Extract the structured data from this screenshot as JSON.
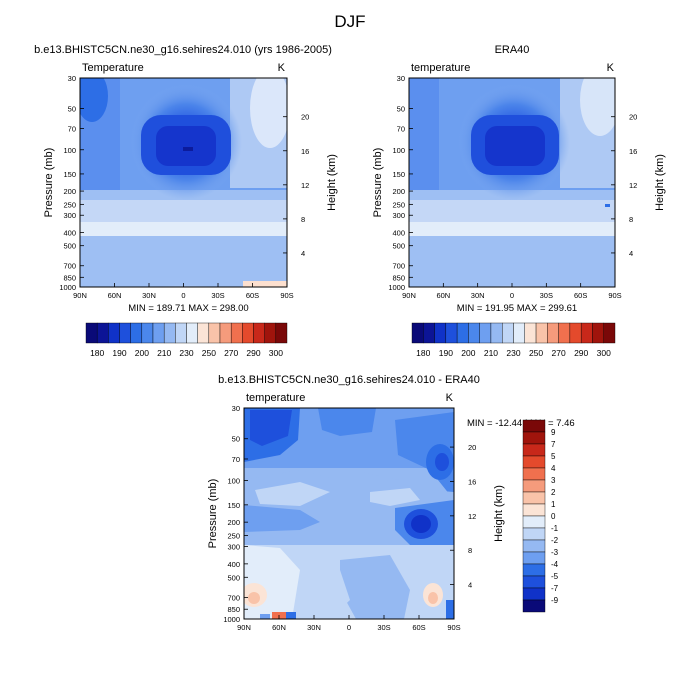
{
  "figure_title": "DJF",
  "chart_data": [
    {
      "type": "heatmap",
      "title": "b.e13.BHISTC5CN.ne30_g16.sehires24.010 (yrs 1986-2005)",
      "variable_label": "Temperature",
      "units": "K",
      "xlabel": "",
      "ylabel": "Pressure (mb)",
      "ylabel_right": "Height (km)",
      "x_ticks": [
        "90N",
        "60N",
        "30N",
        "0",
        "30S",
        "60S",
        "90S"
      ],
      "y_ticks": [
        30,
        50,
        70,
        100,
        150,
        200,
        250,
        300,
        400,
        500,
        700,
        850,
        1000
      ],
      "height_ticks": [
        4,
        8,
        12,
        16,
        20
      ],
      "y_scale": "log",
      "y_inverted": true,
      "stats": "MIN = 189.71  MAX = 298.00",
      "min": 189.71,
      "max": 298.0,
      "colorbar": {
        "orientation": "horizontal",
        "labels": [
          "180",
          "190",
          "200",
          "210",
          "230",
          "250",
          "270",
          "290",
          "300"
        ],
        "levels": [
          180,
          185,
          190,
          195,
          200,
          205,
          210,
          220,
          230,
          240,
          250,
          260,
          270,
          280,
          290,
          295,
          300
        ],
        "colors": [
          "#0a0a78",
          "#0c1496",
          "#1032c8",
          "#1e50dc",
          "#2d6ee6",
          "#4b87ec",
          "#6e9ff0",
          "#95b9f2",
          "#c0d6f6",
          "#e2edfa",
          "#fbe4d6",
          "#f9c3a9",
          "#f59b7c",
          "#f0704e",
          "#e44a2c",
          "#c8281a",
          "#a0140c",
          "#7a0808"
        ]
      }
    },
    {
      "type": "heatmap",
      "title": "ERA40",
      "variable_label": "temperature",
      "units": "K",
      "xlabel": "",
      "ylabel": "Pressure (mb)",
      "ylabel_right": "Height (km)",
      "x_ticks": [
        "90N",
        "60N",
        "30N",
        "0",
        "30S",
        "60S",
        "90S"
      ],
      "y_ticks": [
        30,
        50,
        70,
        100,
        150,
        200,
        250,
        300,
        400,
        500,
        700,
        850,
        1000
      ],
      "height_ticks": [
        4,
        8,
        12,
        16,
        20
      ],
      "y_scale": "log",
      "y_inverted": true,
      "stats": "MIN = 191.95  MAX = 299.61",
      "min": 191.95,
      "max": 299.61,
      "colorbar": {
        "orientation": "horizontal",
        "labels": [
          "180",
          "190",
          "200",
          "210",
          "230",
          "250",
          "270",
          "290",
          "300"
        ],
        "levels": [
          180,
          185,
          190,
          195,
          200,
          205,
          210,
          220,
          230,
          240,
          250,
          260,
          270,
          280,
          290,
          295,
          300
        ],
        "colors": [
          "#0a0a78",
          "#0c1496",
          "#1032c8",
          "#1e50dc",
          "#2d6ee6",
          "#4b87ec",
          "#6e9ff0",
          "#95b9f2",
          "#c0d6f6",
          "#e2edfa",
          "#fbe4d6",
          "#f9c3a9",
          "#f59b7c",
          "#f0704e",
          "#e44a2c",
          "#c8281a",
          "#a0140c",
          "#7a0808"
        ]
      }
    },
    {
      "type": "heatmap",
      "title": "b.e13.BHISTC5CN.ne30_g16.sehires24.010 - ERA40",
      "variable_label": "temperature",
      "units": "K",
      "xlabel": "",
      "ylabel": "Pressure (mb)",
      "ylabel_right": "Height (km)",
      "x_ticks": [
        "90N",
        "60N",
        "30N",
        "0",
        "30S",
        "60S",
        "90S"
      ],
      "y_ticks": [
        30,
        50,
        70,
        100,
        150,
        200,
        250,
        300,
        400,
        500,
        700,
        850,
        1000
      ],
      "height_ticks": [
        4,
        8,
        12,
        16,
        20
      ],
      "y_scale": "log",
      "y_inverted": true,
      "stats": "MIN = -12.44  MAX =  7.46",
      "min": -12.44,
      "max": 7.46,
      "colorbar": {
        "orientation": "vertical",
        "labels": [
          "9",
          "7",
          "5",
          "4",
          "3",
          "2",
          "1",
          "0",
          "-1",
          "-2",
          "-3",
          "-4",
          "-5",
          "-7",
          "-9"
        ],
        "levels": [
          9,
          7,
          5,
          4,
          3,
          2,
          1,
          0,
          -1,
          -2,
          -3,
          -4,
          -5,
          -7,
          -9
        ],
        "colors": [
          "#7a0808",
          "#a0140c",
          "#c8281a",
          "#e44a2c",
          "#f0704e",
          "#f59b7c",
          "#f9c3a9",
          "#fbe4d6",
          "#e2edfa",
          "#c0d6f6",
          "#95b9f2",
          "#6e9ff0",
          "#2d6ee6",
          "#1e50dc",
          "#1032c8",
          "#0a0a78"
        ]
      }
    }
  ]
}
